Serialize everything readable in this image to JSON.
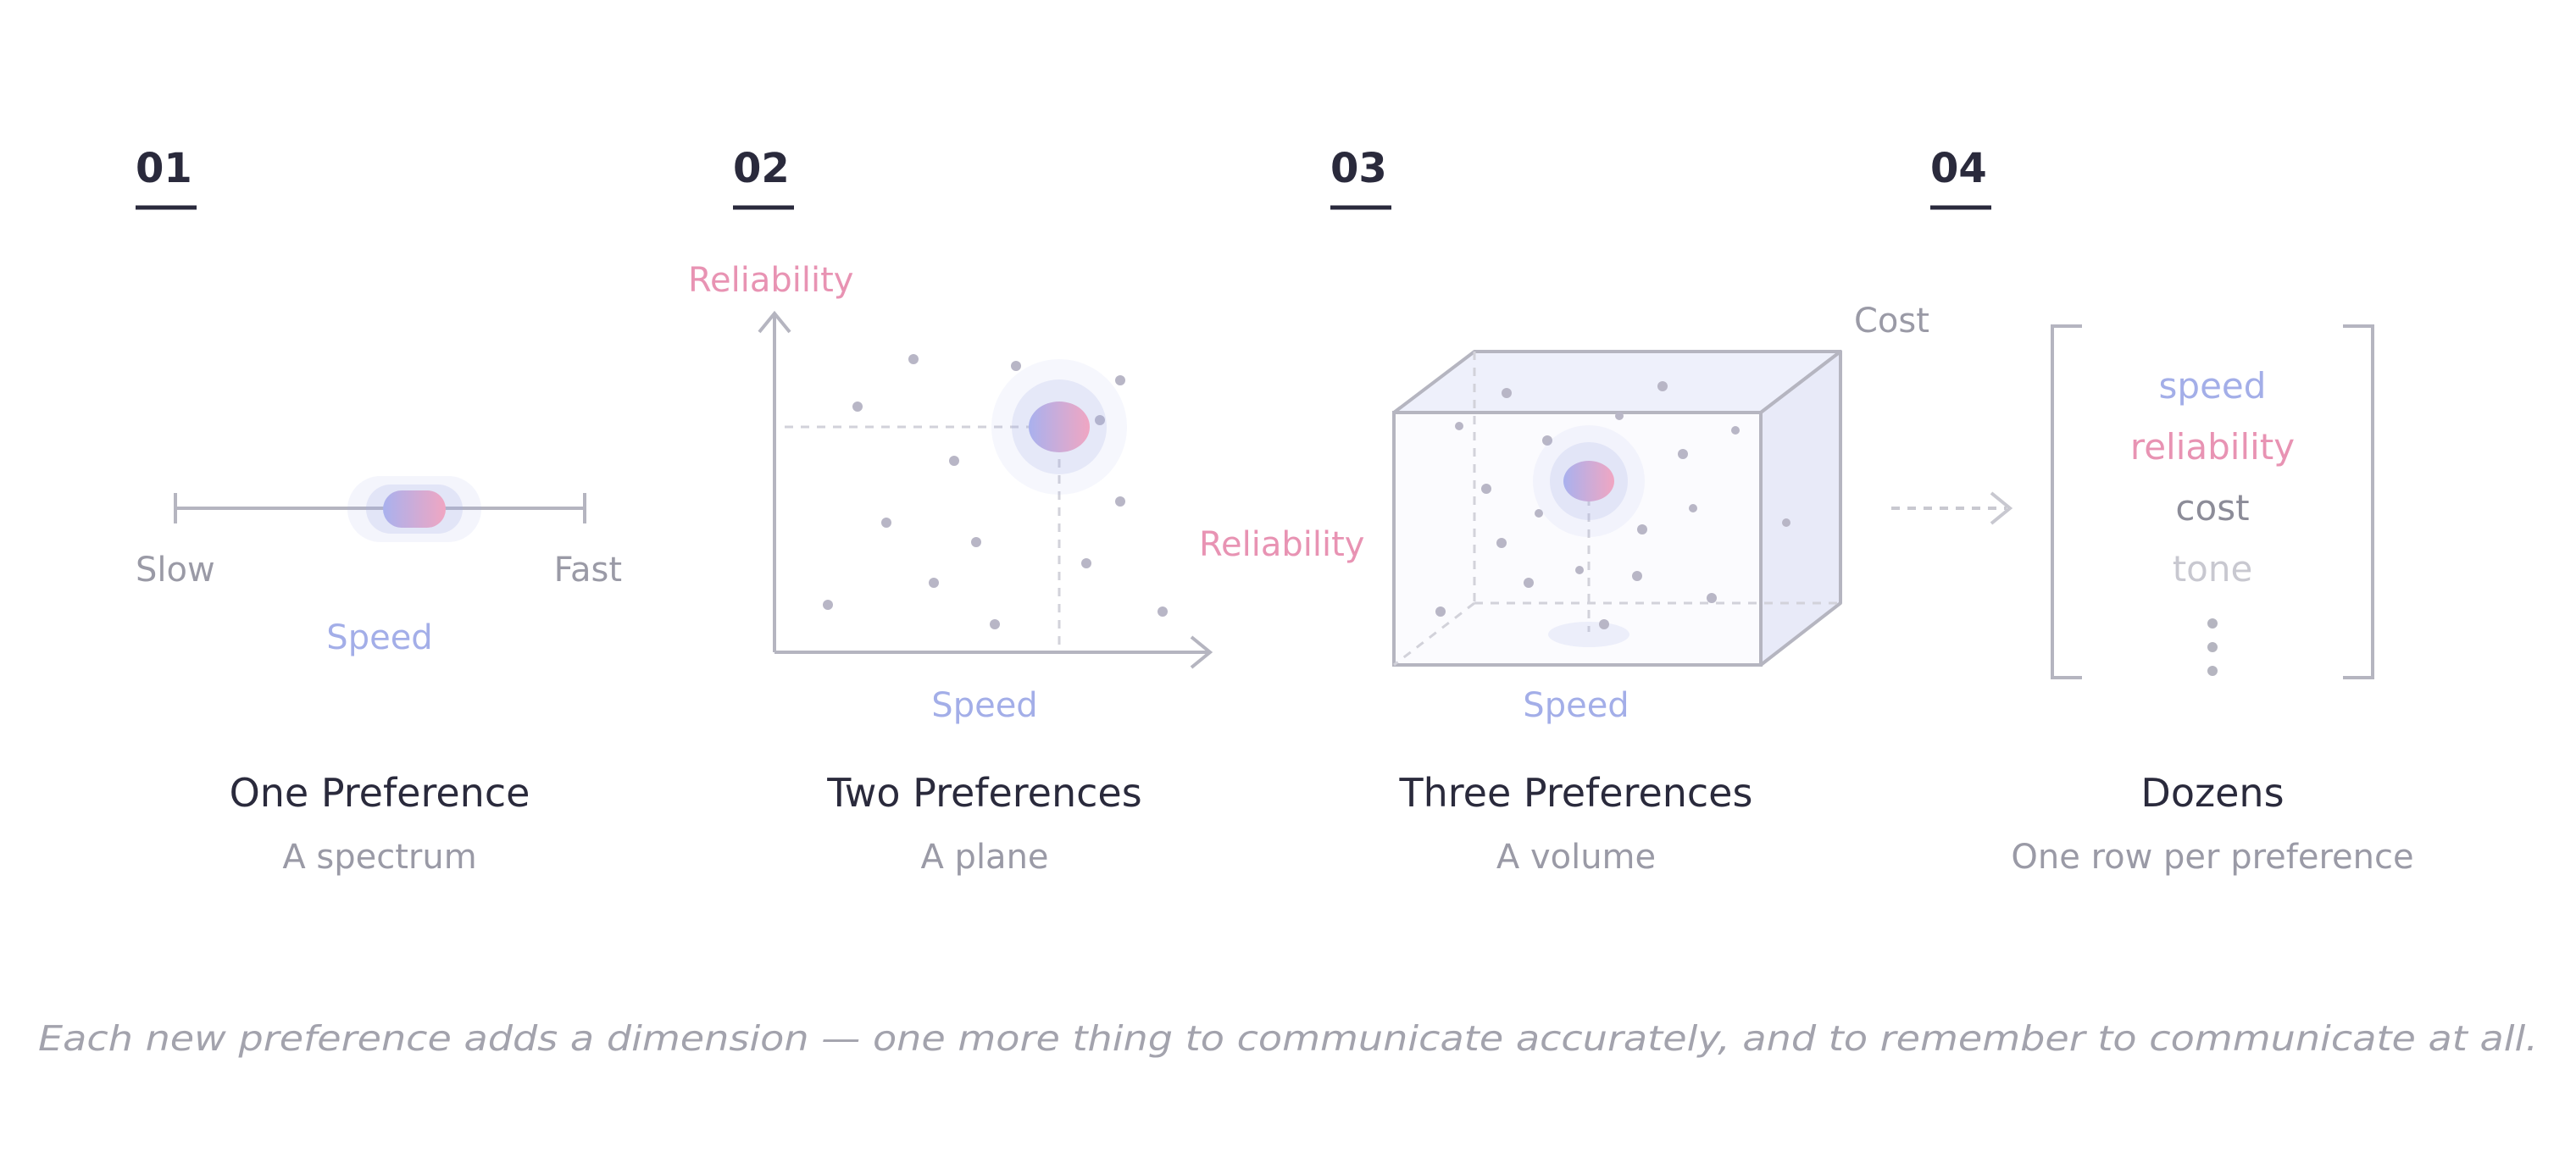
{
  "colors": {
    "blue": "#a3aee8",
    "pink": "#e893b3",
    "gray": "#8c8c98",
    "light_gray": "#c8c8d0",
    "dark": "#2a2a3c",
    "line": "#b5b5c0"
  },
  "panels": [
    {
      "number": "01",
      "title": "One Preference",
      "subtitle": "A spectrum",
      "axis_label": "Speed",
      "low_label": "Slow",
      "high_label": "Fast"
    },
    {
      "number": "02",
      "title": "Two Preferences",
      "subtitle": "A plane",
      "y_label": "Reliability",
      "x_label": "Speed"
    },
    {
      "number": "03",
      "title": "Three Preferences",
      "subtitle": "A volume",
      "x_label": "Speed",
      "y_label": "Reliability",
      "z_label": "Cost"
    },
    {
      "number": "04",
      "title": "Dozens",
      "subtitle": "One row per preference",
      "rows": [
        "speed",
        "reliability",
        "cost",
        "tone"
      ]
    }
  ],
  "caption": "Each new preference adds a dimension — one more thing to communicate accurately, and to remember to communicate at all."
}
